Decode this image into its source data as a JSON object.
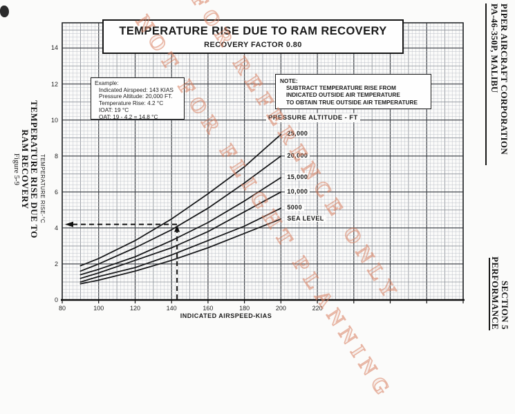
{
  "page": {
    "left_margin": {
      "line1": "TEMPERATURE RISE DUE TO",
      "line2": "RAM RECOVERY",
      "figure": "Figure 5-9"
    },
    "right_header": {
      "line1": "PIPER AIRCRAFT CORPORATION",
      "line2": "PA-46-350P, MALIBU"
    },
    "right_footer": {
      "line1": "SECTION 5",
      "line2": "PERFORMANCE"
    }
  },
  "title": {
    "line1": "TEMPERATURE RISE DUE TO RAM RECOVERY",
    "line2": "RECOVERY FACTOR 0.80"
  },
  "example": {
    "heading": "Example:",
    "lines": [
      "Indicated Airspeed: 143 KIAS",
      "Pressure Altitude: 20,000 FT.",
      "Temperature Rise: 4.2 °C",
      "IOAT: 19 °C",
      "OAT: 19 - 4.2 = 14.8 °C"
    ]
  },
  "note": {
    "heading": "NOTE:",
    "lines": [
      "SUBTRACT TEMPERATURE RISE FROM",
      "INDICATED OUTSIDE AIR TEMPERATURE",
      "TO OBTAIN TRUE OUTSIDE AIR TEMPERATURE"
    ]
  },
  "watermark": {
    "line1": "FOR REFERENCE ONLY",
    "line2": "NOT FOR FLIGHT PLANNING",
    "color": "#d88060"
  },
  "chart_data": {
    "type": "line",
    "title": "TEMPERATURE RISE DUE TO RAM RECOVERY",
    "subtitle": "RECOVERY FACTOR 0.80",
    "xlabel": "INDICATED AIRSPEED-KIAS",
    "ylabel": "TEMPERATURE RISE-°C",
    "series_label": "PRESSURE ALTITUDE - FT",
    "x": [
      90,
      100,
      120,
      140,
      160,
      180,
      200
    ],
    "series": [
      {
        "name": "25,000",
        "values": [
          1.9,
          2.3,
          3.3,
          4.5,
          5.9,
          7.4,
          9.2
        ]
      },
      {
        "name": "20,000",
        "values": [
          1.6,
          2.0,
          2.9,
          3.9,
          5.1,
          6.5,
          8.0
        ]
      },
      {
        "name": "15,000",
        "values": [
          1.4,
          1.7,
          2.4,
          3.3,
          4.3,
          5.5,
          6.8
        ]
      },
      {
        "name": "10,000",
        "values": [
          1.2,
          1.5,
          2.2,
          2.9,
          3.8,
          4.9,
          6.0
        ]
      },
      {
        "name": "5000",
        "values": [
          1.0,
          1.3,
          1.8,
          2.5,
          3.3,
          4.1,
          5.1
        ]
      },
      {
        "name": "SEA LEVEL",
        "values": [
          0.9,
          1.1,
          1.6,
          2.2,
          2.9,
          3.7,
          4.5
        ]
      }
    ],
    "xlim": [
      80,
      300
    ],
    "ylim": [
      0,
      15.4
    ],
    "x_tick_labels": [
      80,
      100,
      120,
      140,
      160,
      180,
      200,
      220
    ],
    "y_tick_labels": [
      0,
      2,
      4,
      6,
      8,
      10,
      12,
      14
    ],
    "example_guide": {
      "kias": 143,
      "temp_rise": 4.2
    },
    "grid": "fine engineering grid, majors every 20 KIAS / 2 °C",
    "legend_position": "labels at right end of each curve"
  }
}
